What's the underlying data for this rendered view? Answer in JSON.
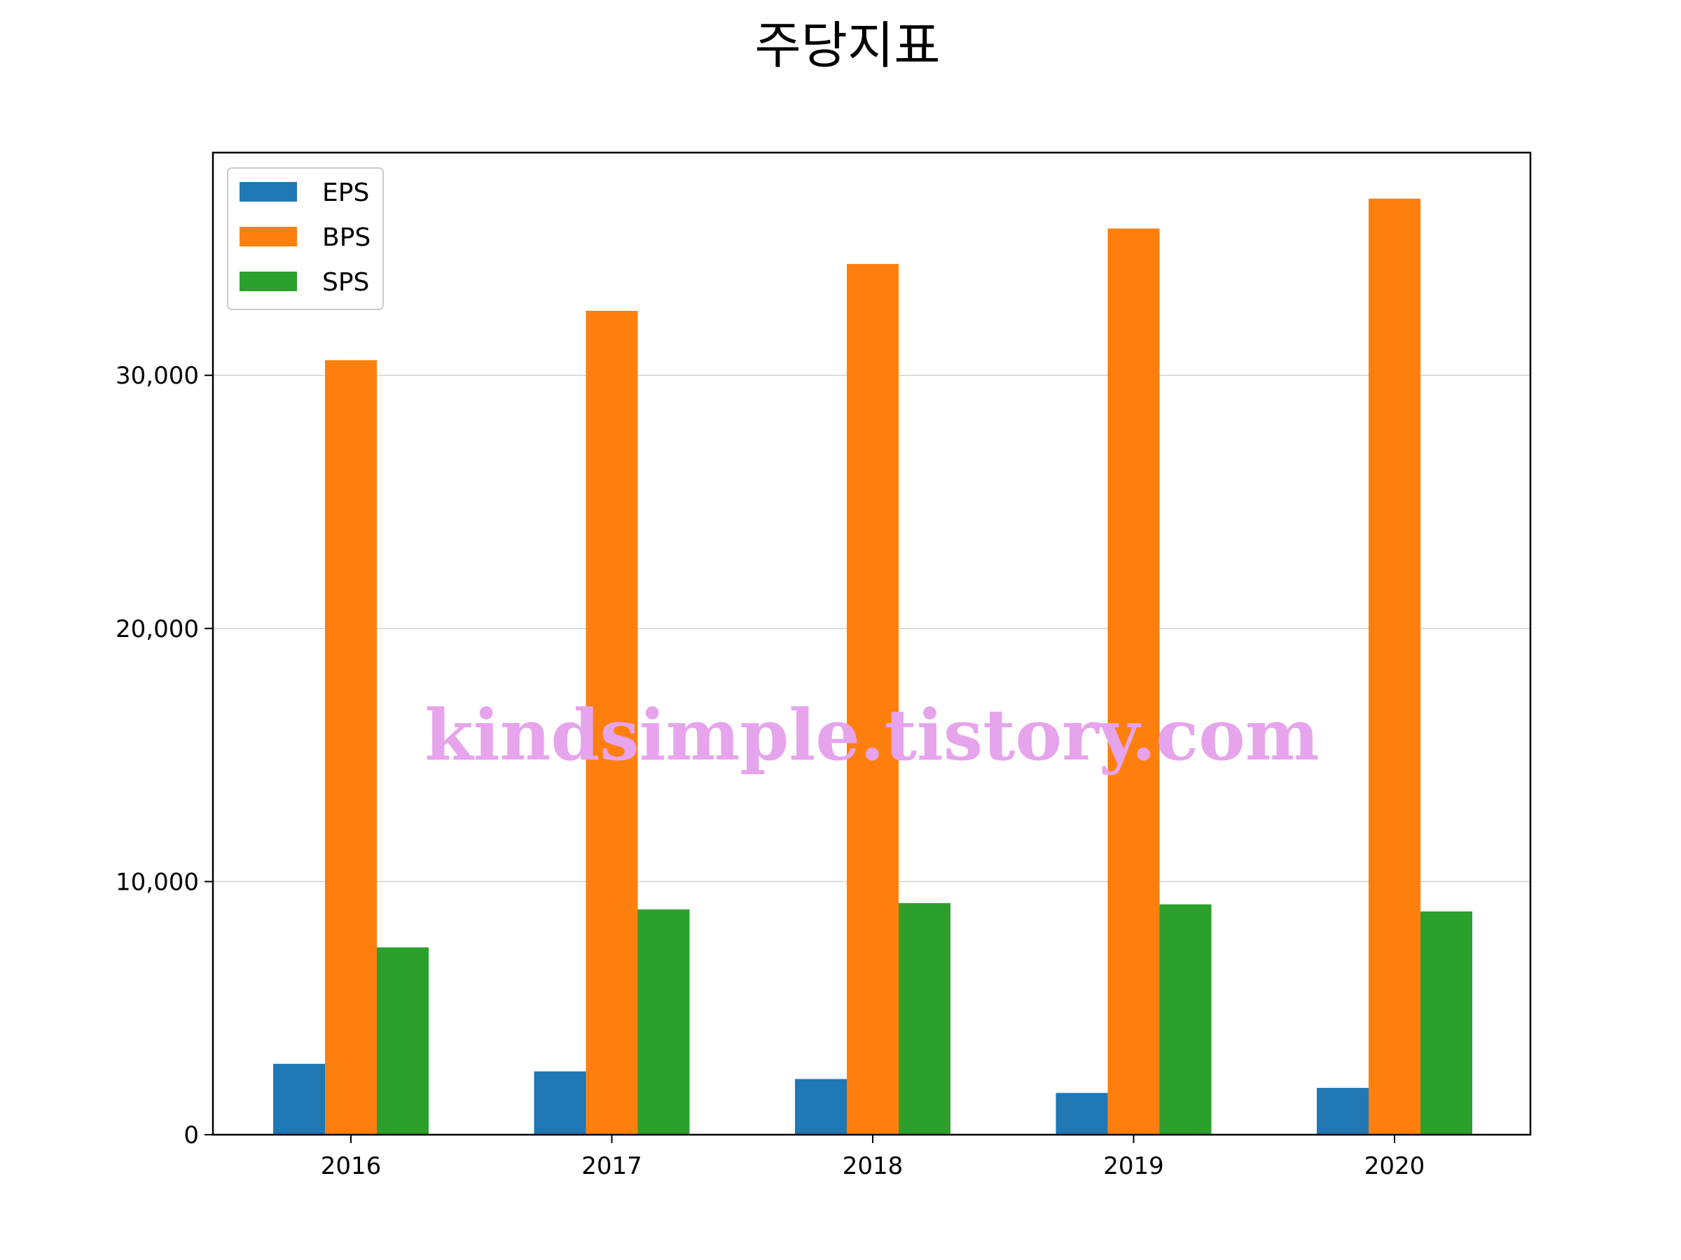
{
  "chart_data": {
    "type": "bar",
    "title": "주당지표",
    "xlabel": "",
    "ylabel": "",
    "categories": [
      "2016",
      "2017",
      "2018",
      "2019",
      "2020"
    ],
    "series": [
      {
        "name": "EPS",
        "color": "#1f77b4",
        "values": [
          2800,
          2500,
          2200,
          1650,
          1850
        ]
      },
      {
        "name": "BPS",
        "color": "#ff7f0e",
        "values": [
          30600,
          32550,
          34400,
          35800,
          36980
        ]
      },
      {
        "name": "SPS",
        "color": "#2ca02c",
        "values": [
          7400,
          8900,
          9150,
          9100,
          8820
        ]
      }
    ],
    "ylim": [
      0,
      38800
    ],
    "yticks": [
      0,
      10000,
      20000,
      30000
    ],
    "ytick_labels": [
      "0",
      "10,000",
      "20,000",
      "30,000"
    ],
    "grid": "horizontal",
    "legend_position": "top-left",
    "watermark": "kindsimple.tistory.com"
  }
}
